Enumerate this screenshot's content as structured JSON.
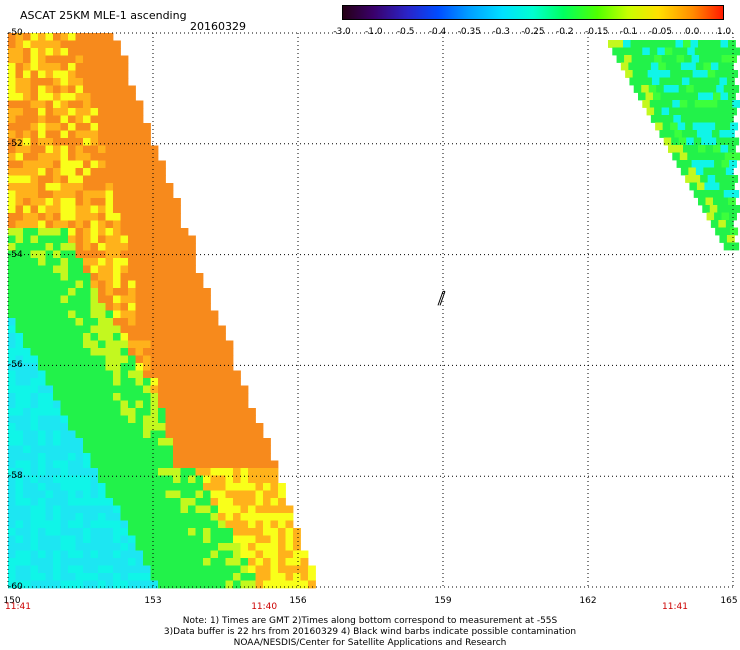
{
  "header": {
    "title": "ASCAT 25KM MLE-1 ascending",
    "date": "20160329"
  },
  "colorbar": {
    "ticks": [
      "-3.0",
      "-1.0",
      "-0.5",
      "-0.4",
      "-0.35",
      "-0.3",
      "-0.25",
      "-0.2",
      "-0.15",
      "-0.1",
      "-0.05",
      "0.0",
      "1.0"
    ],
    "colors": [
      "#250015",
      "#3a006a",
      "#2a24c8",
      "#004cff",
      "#009dff",
      "#00e0ff",
      "#00ffd0",
      "#00ff60",
      "#50ff00",
      "#c8ff00",
      "#ffe000",
      "#ff8c00",
      "#ff1a00"
    ]
  },
  "map": {
    "lat_labels": [
      "-50",
      "-52",
      "-54",
      "-56",
      "-58",
      "-60"
    ],
    "lon_labels": [
      "150",
      "153",
      "156",
      "159",
      "162",
      "165"
    ],
    "time_labels": [
      {
        "text": "11:41",
        "lon": 150
      },
      {
        "text": "11:40",
        "lon": 155.3
      },
      {
        "text": "11:41",
        "lon": 163.8
      }
    ],
    "lat_range": [
      -60,
      -50
    ],
    "lon_range": [
      150,
      165
    ],
    "grid": "dotted",
    "colors": {
      "orange": "#f78a1c",
      "orange_light": "#ffb21b",
      "yellow": "#f9ff1a",
      "yellow_green": "#c3f81f",
      "green": "#22f24a",
      "cyan": "#10f5e8",
      "cyan_light": "#1de6f2"
    }
  },
  "notes": [
    "Note: 1) Times are GMT 2)Times along bottom correspond to measurement at -55S",
    "3)Data buffer is 22 hrs from 20160329 4) Black wind barbs indicate possible contamination",
    "NOAA/NESDIS/Center for Satellite Applications and Research"
  ]
}
